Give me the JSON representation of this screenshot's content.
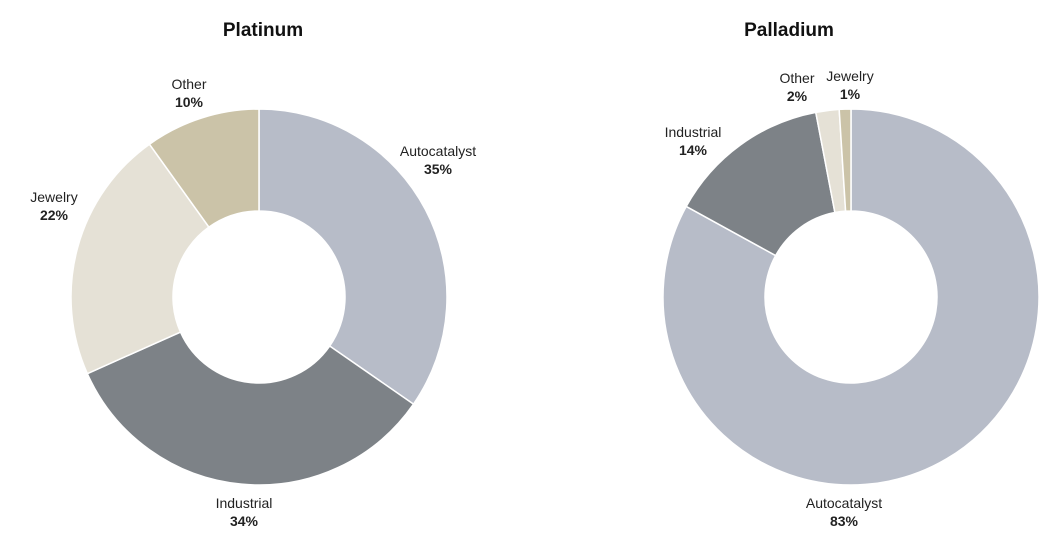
{
  "chart_data": [
    {
      "type": "pie",
      "title": "Platinum",
      "donut": true,
      "slices": [
        {
          "label": "Autocatalyst",
          "value": 35,
          "value_label": "35%",
          "color": "#b7bcc8"
        },
        {
          "label": "Industrial",
          "value": 34,
          "value_label": "34%",
          "color": "#7d8287"
        },
        {
          "label": "Jewelry",
          "value": 22,
          "value_label": "22%",
          "color": "#e5e1d6"
        },
        {
          "label": "Other",
          "value": 10,
          "value_label": "10%",
          "color": "#cbc3a8"
        }
      ]
    },
    {
      "type": "pie",
      "title": "Palladium",
      "donut": true,
      "slices": [
        {
          "label": "Autocatalyst",
          "value": 83,
          "value_label": "83%",
          "color": "#b7bcc8"
        },
        {
          "label": "Industrial",
          "value": 14,
          "value_label": "14%",
          "color": "#7d8287"
        },
        {
          "label": "Other",
          "value": 2,
          "value_label": "2%",
          "color": "#e5e1d6"
        },
        {
          "label": "Jewelry",
          "value": 1,
          "value_label": "1%",
          "color": "#cbc3a8"
        }
      ]
    }
  ]
}
